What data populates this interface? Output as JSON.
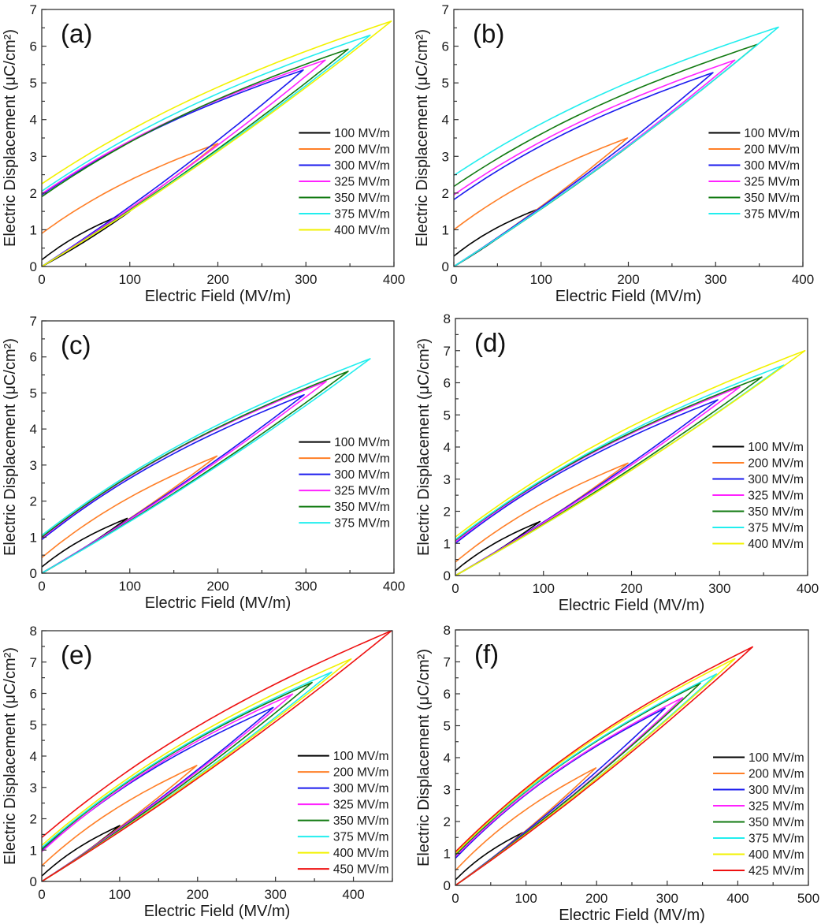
{
  "colors": {
    "100": "#000000",
    "200": "#ff7f27",
    "300": "#1a1aee",
    "325": "#ff22ff",
    "350": "#117a11",
    "375": "#22eeee",
    "400": "#f2f200",
    "450": "#ee1111",
    "425": "#ee1111"
  },
  "chart_data": [
    {
      "type": "line",
      "panel_label": "(a)",
      "xlabel": "Electric Field (MV/m)",
      "ylabel": "Electric Displacement (μC/cm²)",
      "xlim": [
        0,
        400
      ],
      "ylim": [
        0,
        7
      ],
      "xticks": [
        0,
        100,
        200,
        300,
        400
      ],
      "yticks": [
        0,
        1,
        2,
        3,
        4,
        5,
        6,
        7
      ],
      "legend_position": "center-right",
      "grid": false,
      "series": [
        {
          "name": "100 MV/m",
          "key": "100",
          "e_max": 100,
          "d_max": 1.5,
          "d_remanent": 0.18
        },
        {
          "name": "200 MV/m",
          "key": "200",
          "e_max": 200,
          "d_max": 3.35,
          "d_remanent": 0.9
        },
        {
          "name": "300 MV/m",
          "key": "300",
          "e_max": 297,
          "d_max": 5.35,
          "d_remanent": 1.95
        },
        {
          "name": "325 MV/m",
          "key": "325",
          "e_max": 322,
          "d_max": 5.62,
          "d_remanent": 1.98
        },
        {
          "name": "350 MV/m",
          "key": "350",
          "e_max": 348,
          "d_max": 5.92,
          "d_remanent": 1.9
        },
        {
          "name": "375 MV/m",
          "key": "375",
          "e_max": 373,
          "d_max": 6.3,
          "d_remanent": 2.05
        },
        {
          "name": "400 MV/m",
          "key": "400",
          "e_max": 397,
          "d_max": 6.68,
          "d_remanent": 2.25
        }
      ]
    },
    {
      "type": "line",
      "panel_label": "(b)",
      "xlabel": "Electric Field (MV/m)",
      "ylabel": "Electric Displacement (μC/cm²)",
      "xlim": [
        0,
        400
      ],
      "ylim": [
        0,
        7
      ],
      "xticks": [
        0,
        100,
        200,
        300,
        400
      ],
      "yticks": [
        0,
        1,
        2,
        3,
        4,
        5,
        6,
        7
      ],
      "legend_position": "center-right",
      "grid": false,
      "series": [
        {
          "name": "100 MV/m",
          "key": "100",
          "e_max": 95,
          "d_max": 1.55,
          "d_remanent": 0.28
        },
        {
          "name": "200 MV/m",
          "key": "200",
          "e_max": 199,
          "d_max": 3.5,
          "d_remanent": 1.0
        },
        {
          "name": "300 MV/m",
          "key": "300",
          "e_max": 297,
          "d_max": 5.28,
          "d_remanent": 1.82
        },
        {
          "name": "325 MV/m",
          "key": "325",
          "e_max": 322,
          "d_max": 5.62,
          "d_remanent": 1.95
        },
        {
          "name": "350 MV/m",
          "key": "350",
          "e_max": 348,
          "d_max": 6.05,
          "d_remanent": 2.18
        },
        {
          "name": "375 MV/m",
          "key": "375",
          "e_max": 372,
          "d_max": 6.52,
          "d_remanent": 2.48
        }
      ]
    },
    {
      "type": "line",
      "panel_label": "(c)",
      "xlabel": "Electric Field (MV/m)",
      "ylabel": "Electric Displacement (μC/cm²)",
      "xlim": [
        0,
        400
      ],
      "ylim": [
        0,
        7
      ],
      "xticks": [
        0,
        100,
        200,
        300,
        400
      ],
      "yticks": [
        0,
        1,
        2,
        3,
        4,
        5,
        6,
        7
      ],
      "legend_position": "center-right",
      "grid": false,
      "series": [
        {
          "name": "100 MV/m",
          "key": "100",
          "e_max": 97,
          "d_max": 1.52,
          "d_remanent": 0.17
        },
        {
          "name": "200 MV/m",
          "key": "200",
          "e_max": 199,
          "d_max": 3.25,
          "d_remanent": 0.43
        },
        {
          "name": "300 MV/m",
          "key": "300",
          "e_max": 298,
          "d_max": 4.95,
          "d_remanent": 0.93
        },
        {
          "name": "325 MV/m",
          "key": "325",
          "e_max": 323,
          "d_max": 5.32,
          "d_remanent": 0.97
        },
        {
          "name": "350 MV/m",
          "key": "350",
          "e_max": 348,
          "d_max": 5.6,
          "d_remanent": 1.0
        },
        {
          "name": "375 MV/m",
          "key": "375",
          "e_max": 373,
          "d_max": 5.95,
          "d_remanent": 1.05
        }
      ]
    },
    {
      "type": "line",
      "panel_label": "(d)",
      "xlabel": "Electric Field (MV/m)",
      "ylabel": "Electric Displacement (μC/cm²)",
      "xlim": [
        0,
        400
      ],
      "ylim": [
        0,
        8
      ],
      "xticks": [
        0,
        100,
        200,
        300,
        400
      ],
      "yticks": [
        0,
        1,
        2,
        3,
        4,
        5,
        6,
        7,
        8
      ],
      "legend_position": "center-right",
      "grid": false,
      "series": [
        {
          "name": "100 MV/m",
          "key": "100",
          "e_max": 96,
          "d_max": 1.68,
          "d_remanent": 0.15
        },
        {
          "name": "200 MV/m",
          "key": "200",
          "e_max": 196,
          "d_max": 3.5,
          "d_remanent": 0.42
        },
        {
          "name": "300 MV/m",
          "key": "300",
          "e_max": 298,
          "d_max": 5.47,
          "d_remanent": 1.0
        },
        {
          "name": "325 MV/m",
          "key": "325",
          "e_max": 323,
          "d_max": 5.87,
          "d_remanent": 1.05
        },
        {
          "name": "350 MV/m",
          "key": "350",
          "e_max": 348,
          "d_max": 6.18,
          "d_remanent": 1.1
        },
        {
          "name": "375 MV/m",
          "key": "375",
          "e_max": 373,
          "d_max": 6.55,
          "d_remanent": 1.12
        },
        {
          "name": "400 MV/m",
          "key": "400",
          "e_max": 397,
          "d_max": 7.0,
          "d_remanent": 1.2
        }
      ]
    },
    {
      "type": "line",
      "panel_label": "(e)",
      "xlabel": "Electric Field (MV/m)",
      "ylabel": "Electric Displacement (μC/cm²)",
      "xlim": [
        0,
        450
      ],
      "ylim": [
        0,
        8
      ],
      "xticks": [
        0,
        100,
        200,
        300,
        400
      ],
      "yticks": [
        0,
        1,
        2,
        3,
        4,
        5,
        6,
        7,
        8
      ],
      "legend_position": "center-right",
      "grid": false,
      "series": [
        {
          "name": "100 MV/m",
          "key": "100",
          "e_max": 100,
          "d_max": 1.78,
          "d_remanent": 0.17
        },
        {
          "name": "200 MV/m",
          "key": "200",
          "e_max": 199,
          "d_max": 3.7,
          "d_remanent": 0.5
        },
        {
          "name": "300 MV/m",
          "key": "300",
          "e_max": 297,
          "d_max": 5.55,
          "d_remanent": 0.97
        },
        {
          "name": "325 MV/m",
          "key": "325",
          "e_max": 322,
          "d_max": 5.98,
          "d_remanent": 0.95
        },
        {
          "name": "350 MV/m",
          "key": "350",
          "e_max": 347,
          "d_max": 6.35,
          "d_remanent": 1.03
        },
        {
          "name": "375 MV/m",
          "key": "375",
          "e_max": 372,
          "d_max": 6.68,
          "d_remanent": 1.08
        },
        {
          "name": "400 MV/m",
          "key": "400",
          "e_max": 397,
          "d_max": 7.1,
          "d_remanent": 1.15
        },
        {
          "name": "450 MV/m",
          "key": "450",
          "e_max": 449,
          "d_max": 8.0,
          "d_remanent": 1.4
        }
      ]
    },
    {
      "type": "line",
      "panel_label": "(f)",
      "xlabel": "Electric Field (MV/m)",
      "ylabel": "Electric Displacement (μC/cm²)",
      "xlim": [
        0,
        500
      ],
      "ylim": [
        0,
        8
      ],
      "xticks": [
        0,
        100,
        200,
        300,
        400,
        500
      ],
      "yticks": [
        0,
        1,
        2,
        3,
        4,
        5,
        6,
        7,
        8
      ],
      "legend_position": "center-right",
      "grid": false,
      "series": [
        {
          "name": "100 MV/m",
          "key": "100",
          "e_max": 95,
          "d_max": 1.65,
          "d_remanent": 0.17
        },
        {
          "name": "200 MV/m",
          "key": "200",
          "e_max": 199,
          "d_max": 3.68,
          "d_remanent": 0.47
        },
        {
          "name": "300 MV/m",
          "key": "300",
          "e_max": 297,
          "d_max": 5.55,
          "d_remanent": 0.85
        },
        {
          "name": "325 MV/m",
          "key": "325",
          "e_max": 322,
          "d_max": 5.88,
          "d_remanent": 0.9
        },
        {
          "name": "350 MV/m",
          "key": "350",
          "e_max": 347,
          "d_max": 6.33,
          "d_remanent": 0.95
        },
        {
          "name": "375 MV/m",
          "key": "375",
          "e_max": 370,
          "d_max": 6.62,
          "d_remanent": 1.0
        },
        {
          "name": "400 MV/m",
          "key": "400",
          "e_max": 396,
          "d_max": 7.1,
          "d_remanent": 1.0
        },
        {
          "name": "425 MV/m",
          "key": "425",
          "e_max": 421,
          "d_max": 7.47,
          "d_remanent": 1.05
        }
      ]
    }
  ]
}
